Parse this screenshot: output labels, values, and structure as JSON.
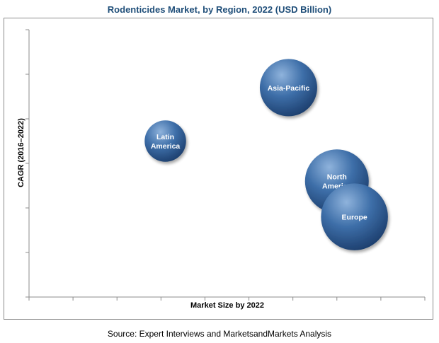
{
  "title": "Rodenticides Market, by Region, 2022 (USD Billion)",
  "source": "Source: Expert Interviews and MarketsandMarkets Analysis",
  "colors": {
    "title": "#1f4e79",
    "bubble_light": "#8fb3dc",
    "bubble_mid": "#3d6ea8",
    "bubble_dark": "#1d3f6e",
    "axis": "#8c8c8c"
  },
  "chart_data": {
    "type": "scatter",
    "title": "Rodenticides Market, by Region, 2022 (USD Billion)",
    "xlabel": "Market Size by 2022",
    "ylabel": "CAGR (2016–2022)",
    "xlim": [
      0,
      9
    ],
    "ylim": [
      0,
      6
    ],
    "x_ticks": 9,
    "y_ticks": 6,
    "tick_labels_shown": false,
    "grid": false,
    "legend": "none",
    "series": [
      {
        "points": [
          {
            "label": [
              "Latin",
              "America"
            ],
            "x": 3.1,
            "y": 3.5,
            "size": 0.65
          },
          {
            "label": [
              "Asia-Pacific"
            ],
            "x": 5.9,
            "y": 4.7,
            "size": 0.9
          },
          {
            "label": [
              "North",
              "America"
            ],
            "x": 7.0,
            "y": 2.6,
            "size": 1.0
          },
          {
            "label": [
              "Europe"
            ],
            "x": 7.4,
            "y": 1.8,
            "size": 1.05
          }
        ]
      }
    ]
  }
}
